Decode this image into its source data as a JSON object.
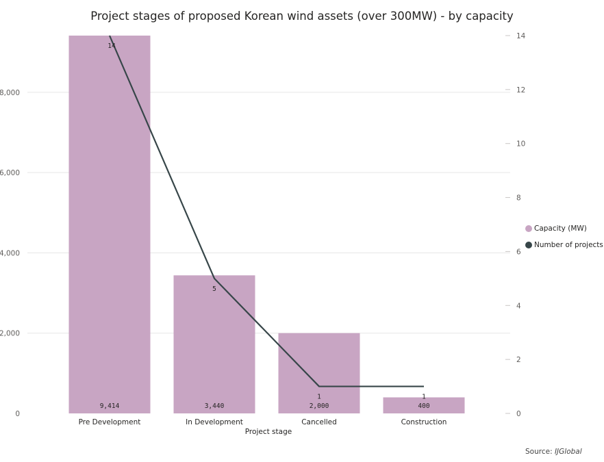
{
  "chart_data": {
    "type": "bar",
    "title": "Project stages of proposed Korean wind assets (over 300MW) - by capacity",
    "xlabel": "Project stage",
    "ylabel": "",
    "y2label": "",
    "categories": [
      "Pre Development",
      "In Development",
      "Cancelled",
      "Construction"
    ],
    "series": [
      {
        "name": "Capacity (MW)",
        "type": "bar",
        "axis": "left",
        "color": "#c8a5c3",
        "values": [
          9414,
          3440,
          2000,
          400
        ],
        "labels": [
          "9,414",
          "3,440",
          "2,000",
          "400"
        ]
      },
      {
        "name": "Number of projects",
        "type": "line",
        "axis": "right",
        "color": "#374649",
        "values": [
          14,
          5,
          1,
          1
        ],
        "labels": [
          "14",
          "5",
          "1",
          "1"
        ]
      }
    ],
    "ylim": [
      0,
      9414
    ],
    "y_ticks": [
      0,
      2000,
      4000,
      6000,
      8000
    ],
    "y_tick_labels": [
      "0",
      "2,000",
      "4,000",
      "6,000",
      "8,000"
    ],
    "y2lim": [
      0,
      14
    ],
    "y2_ticks": [
      0,
      2,
      4,
      6,
      8,
      10,
      12,
      14
    ],
    "y2_tick_labels": [
      "0",
      "2",
      "4",
      "6",
      "8",
      "10",
      "12",
      "14"
    ],
    "grid": true,
    "legend_position": "right"
  },
  "source": {
    "prefix": "Source: ",
    "name": "IJGlobal"
  }
}
